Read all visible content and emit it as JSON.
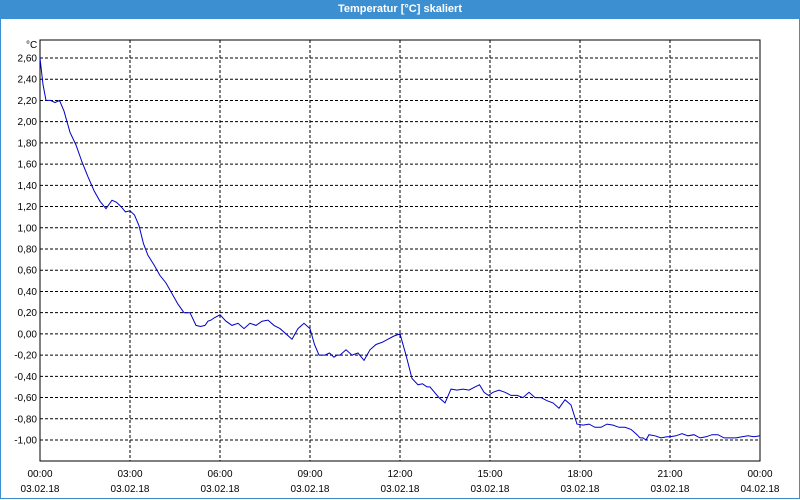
{
  "window": {
    "title": "Temperatur [°C] skaliert"
  },
  "colors": {
    "titlebar": "#3c8fd0",
    "series": "#0000c8",
    "grid": "#000000"
  },
  "chart_data": {
    "type": "line",
    "title": "Temperatur [°C] skaliert",
    "ylabel": "°C",
    "ylim": [
      -1.1,
      2.8
    ],
    "xlim_hours": [
      0,
      24
    ],
    "grid": true,
    "y_ticks": [
      "2,60",
      "2,40",
      "2,20",
      "2,00",
      "1,80",
      "1,60",
      "1,40",
      "1,20",
      "1,00",
      "0,80",
      "0,60",
      "0,40",
      "0,20",
      "0,00",
      "-0,20",
      "-0,40",
      "-0,60",
      "-0,80",
      "-1,00"
    ],
    "y_tick_values": [
      2.6,
      2.4,
      2.2,
      2.0,
      1.8,
      1.6,
      1.4,
      1.2,
      1.0,
      0.8,
      0.6,
      0.4,
      0.2,
      0.0,
      -0.2,
      -0.4,
      -0.6,
      -0.8,
      -1.0
    ],
    "x_ticks": [
      {
        "time": "00:00",
        "date": "03.02.18",
        "hour": 0
      },
      {
        "time": "03:00",
        "date": "03.02.18",
        "hour": 3
      },
      {
        "time": "06:00",
        "date": "03.02.18",
        "hour": 6
      },
      {
        "time": "09:00",
        "date": "03.02.18",
        "hour": 9
      },
      {
        "time": "12:00",
        "date": "03.02.18",
        "hour": 12
      },
      {
        "time": "15:00",
        "date": "03.02.18",
        "hour": 15
      },
      {
        "time": "18:00",
        "date": "03.02.18",
        "hour": 18
      },
      {
        "time": "21:00",
        "date": "03.02.18",
        "hour": 21
      },
      {
        "time": "00:00",
        "date": "04.02.18",
        "hour": 24
      }
    ],
    "series": [
      {
        "x": [
          0,
          0.1,
          0.2,
          0.35,
          0.5,
          0.65,
          0.8,
          1.0,
          1.2,
          1.4,
          1.6,
          1.8,
          2.0,
          2.2,
          2.4,
          2.55,
          2.7,
          2.85,
          3.0,
          3.15,
          3.3,
          3.45,
          3.6,
          3.8,
          4.0,
          4.2,
          4.4,
          4.6,
          4.8,
          5.0,
          5.2,
          5.35,
          5.5,
          5.6,
          5.7,
          5.8,
          6.0,
          6.2,
          6.4,
          6.6,
          6.8,
          7.0,
          7.2,
          7.4,
          7.6,
          7.8,
          8.0,
          8.2,
          8.4,
          8.6,
          8.8,
          9.0,
          9.15,
          9.3,
          9.5,
          9.65,
          9.8,
          9.9,
          10.0,
          10.2,
          10.4,
          10.6,
          10.8,
          11.0,
          11.2,
          11.4,
          11.6,
          11.8,
          12.0,
          12.2,
          12.4,
          12.6,
          12.75,
          12.9,
          13.0,
          13.15,
          13.3,
          13.5,
          13.7,
          13.9,
          14.1,
          14.3,
          14.5,
          14.65,
          14.8,
          14.95,
          15.1,
          15.3,
          15.5,
          15.7,
          15.9,
          16.1,
          16.3,
          16.5,
          16.7,
          16.9,
          17.1,
          17.3,
          17.5,
          17.7,
          17.9,
          18.1,
          18.3,
          18.5,
          18.7,
          18.9,
          19.1,
          19.3,
          19.5,
          19.7,
          19.9,
          20.0,
          20.1,
          20.2,
          20.3,
          20.5,
          20.7,
          20.9,
          21.0,
          21.2,
          21.4,
          21.6,
          21.8,
          22.0,
          22.2,
          22.4,
          22.6,
          22.8,
          23.0,
          23.2,
          23.4,
          23.6,
          23.8,
          24.0
        ],
        "y": [
          2.6,
          2.35,
          2.2,
          2.2,
          2.18,
          2.2,
          2.1,
          1.9,
          1.78,
          1.62,
          1.48,
          1.35,
          1.25,
          1.18,
          1.26,
          1.24,
          1.2,
          1.15,
          1.16,
          1.12,
          1.02,
          0.85,
          0.74,
          0.65,
          0.55,
          0.48,
          0.38,
          0.28,
          0.2,
          0.2,
          0.08,
          0.07,
          0.08,
          0.12,
          0.13,
          0.15,
          0.18,
          0.12,
          0.08,
          0.1,
          0.05,
          0.1,
          0.08,
          0.12,
          0.13,
          0.08,
          0.05,
          0.0,
          -0.05,
          0.05,
          0.1,
          0.05,
          -0.1,
          -0.2,
          -0.2,
          -0.18,
          -0.22,
          -0.2,
          -0.2,
          -0.15,
          -0.2,
          -0.18,
          -0.25,
          -0.15,
          -0.1,
          -0.08,
          -0.05,
          -0.02,
          0.0,
          -0.2,
          -0.42,
          -0.48,
          -0.47,
          -0.5,
          -0.5,
          -0.55,
          -0.6,
          -0.65,
          -0.52,
          -0.53,
          -0.52,
          -0.53,
          -0.5,
          -0.48,
          -0.55,
          -0.58,
          -0.55,
          -0.53,
          -0.55,
          -0.58,
          -0.58,
          -0.6,
          -0.55,
          -0.6,
          -0.6,
          -0.63,
          -0.65,
          -0.7,
          -0.62,
          -0.67,
          -0.85,
          -0.86,
          -0.85,
          -0.88,
          -0.88,
          -0.85,
          -0.86,
          -0.88,
          -0.88,
          -0.9,
          -0.95,
          -0.98,
          -0.98,
          -1.0,
          -0.95,
          -0.96,
          -0.98,
          -0.97,
          -0.97,
          -0.96,
          -0.94,
          -0.96,
          -0.95,
          -0.98,
          -0.97,
          -0.95,
          -0.95,
          -0.98,
          -0.98,
          -0.98,
          -0.97,
          -0.96,
          -0.97,
          -0.96
        ]
      }
    ]
  }
}
